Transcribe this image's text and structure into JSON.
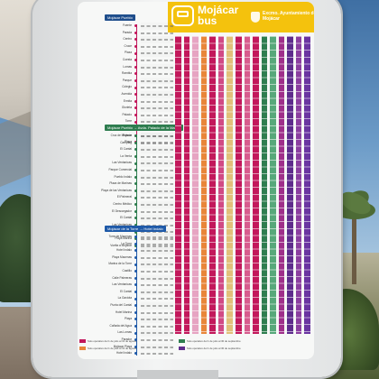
{
  "brand": {
    "name": "Mojácar",
    "sub": "bus",
    "town_council": "Excmo. Ayuntamiento de Mojácar"
  },
  "routes": [
    {
      "title": "Mojácar Pueblo",
      "color": "#c2185b",
      "stops": [
        "Fuente",
        "Parada",
        "Centro",
        "Cruce",
        "Plaza",
        "Cuesta",
        "Lomas",
        "Rambla",
        "Parque",
        "Colegio",
        "Avenida",
        "Ermita",
        "Glorieta",
        "Palacio",
        "Torre",
        "Mirador",
        "Puente",
        "Playa"
      ]
    },
    {
      "title": "Mojácar Pueblo → Avda. Palacio de la Marina",
      "color": "#2e7d4f",
      "stops": [
        "Cruz de Mojácar",
        "Camping",
        "El Cantal",
        "La Venta",
        "Las Ventanicas",
        "Parque Comercial",
        "Pueblo Indalo",
        "Plaza de Marinas",
        "Playa de las Ventanicas",
        "El Palmeral",
        "Centro Médico",
        "El Descargador",
        "El Cantal",
        "Las Ventanicas",
        "Macenas",
        "Playa Marina",
        "Vuelta a Mojácar"
      ]
    },
    {
      "title": "Mojácar de la Torre → Hotel Indalo",
      "color": "#1f5aa8",
      "stops": [
        "Torre de Macenas",
        "La Torre",
        "Hotel Indalo",
        "Playa Macenas",
        "Marina de la Torre",
        "Castillo",
        "Calle Palmeras",
        "Las Ventanicas",
        "El Cantal",
        "La Gaviota",
        "Punta del Cantal",
        "Hotel Marina",
        "Playa",
        "Cañada del Agua",
        "Las Lomas",
        "Parador",
        "Mojácar Playa",
        "Hotel Indalo"
      ]
    }
  ],
  "schedule_columns": [
    "#c2185b",
    "#c2185b",
    "#e6a4c2",
    "#e8863a",
    "#c2185b",
    "#d14a85",
    "#e1c07a",
    "#c2185b",
    "#d75c8d",
    "#c2185b",
    "#2e7d4f",
    "#57a87a",
    "#9f2f8a",
    "#5e2c8c",
    "#8b3fa0",
    "#6a35a1"
  ],
  "footer_notes": [
    {
      "color": "#c2185b",
      "text": "Solo operativo del 1 de julio al 31 de agosto"
    },
    {
      "color": "#e8863a",
      "text": "Solo operativo del 1 de julio al 31 de agosto"
    },
    {
      "color": "#2e7d4f",
      "text": "Solo operativo del 1 de julio al 30 de septiembre"
    },
    {
      "color": "#5e2c8c",
      "text": "Solo operativo del 1 de julio al 30 de septiembre"
    }
  ]
}
